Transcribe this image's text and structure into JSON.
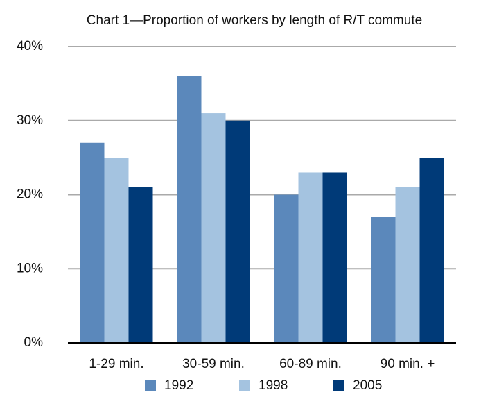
{
  "chart_data": {
    "type": "bar",
    "title": "Chart 1—Proportion of workers by length of R/T commute",
    "categories": [
      "1-29 min.",
      "30-59 min.",
      "60-89 min.",
      "90 min. +"
    ],
    "series": [
      {
        "name": "1992",
        "color": "#5b88bb",
        "values": [
          27,
          36,
          20,
          17
        ]
      },
      {
        "name": "1998",
        "color": "#a4c3e0",
        "values": [
          25,
          31,
          23,
          21
        ]
      },
      {
        "name": "2005",
        "color": "#003a78",
        "values": [
          21,
          30,
          23,
          25
        ]
      }
    ],
    "ylim": [
      0,
      40
    ],
    "yticks": [
      {
        "value": 0,
        "label": "0%"
      },
      {
        "value": 10,
        "label": "10%"
      },
      {
        "value": 20,
        "label": "20%"
      },
      {
        "value": 30,
        "label": "30%"
      },
      {
        "value": 40,
        "label": "40%"
      }
    ],
    "grid": true,
    "legend": "bottom"
  }
}
